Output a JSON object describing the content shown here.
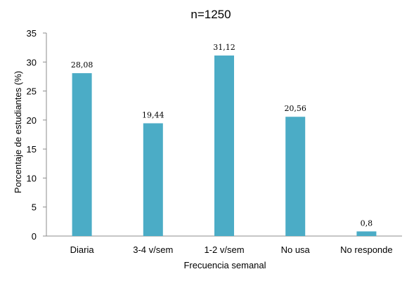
{
  "chart_data": {
    "type": "bar",
    "title": "n=1250",
    "xlabel": "Frecuencia semanal",
    "ylabel": "Porcentaje de estudiantes (%)",
    "categories": [
      "Diaria",
      "3-4 v/sem",
      "1-2 v/sem",
      "No usa",
      "No responde"
    ],
    "values": [
      28.08,
      19.44,
      31.12,
      20.56,
      0.8
    ],
    "data_labels": [
      "28,08",
      "19,44",
      "31,12",
      "20,56",
      "0,8"
    ],
    "ylim": [
      0,
      35
    ],
    "yticks": [
      0,
      5,
      10,
      15,
      20,
      25,
      30,
      35
    ],
    "grid": false,
    "legend": "none",
    "bar_color": "#4BACC6"
  }
}
